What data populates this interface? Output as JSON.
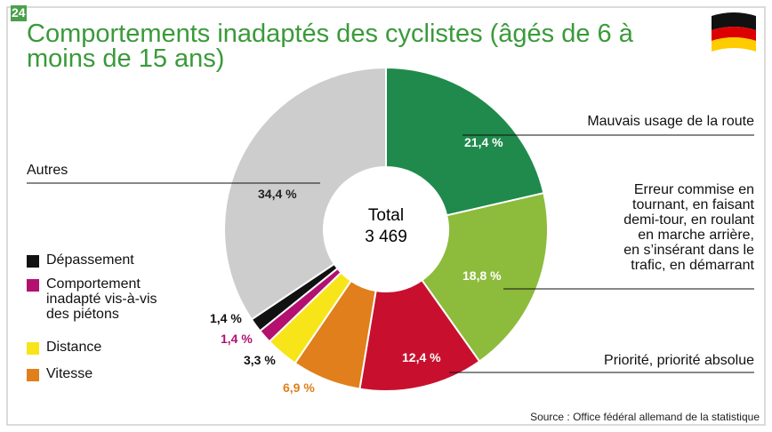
{
  "chart_data": {
    "type": "donut",
    "badge": "24",
    "title": "Comportements inadaptés des cyclistes (âgés de 6 à moins de 15 ans)",
    "center_text": [
      "Total",
      "3 469"
    ],
    "source": "Source : Office fédéral allemand de la statistique",
    "series": [
      {
        "name": "Mauvais usage de la route",
        "color": "#1f8a4c",
        "values": [
          21.4
        ],
        "value_labels": [
          "21,4 %"
        ]
      },
      {
        "name": "Erreur commise en\ntournant, en faisant\ndemi-tour, en roulant\nen marche arrière,\nen s’insérant dans le\ntrafic, en démarrant",
        "color": "#8dbb3c",
        "values": [
          18.8
        ],
        "value_labels": [
          "18,8 %"
        ]
      },
      {
        "name": "Priorité, priorité absolue",
        "color": "#c8102e",
        "values": [
          12.4
        ],
        "value_labels": [
          "12,4 %"
        ]
      },
      {
        "name": "Vitesse",
        "color": "#e07f1c",
        "values": [
          6.9
        ],
        "value_labels": [
          "6,9 %"
        ]
      },
      {
        "name": "Distance",
        "color": "#f7e51a",
        "values": [
          3.3
        ],
        "value_labels": [
          "3,3 %"
        ]
      },
      {
        "name": "Comportement inadapté vis-à-vis des piétons",
        "color": "#b3106f",
        "values": [
          1.4
        ],
        "value_labels": [
          "1,4 %"
        ]
      },
      {
        "name": "Dépassement",
        "color": "#111111",
        "values": [
          1.4
        ],
        "value_labels": [
          "1,4 %"
        ]
      },
      {
        "name": "Autres",
        "color": "#cdcdcd",
        "values": [
          34.4
        ],
        "value_labels": [
          "34,4 %"
        ]
      }
    ]
  }
}
